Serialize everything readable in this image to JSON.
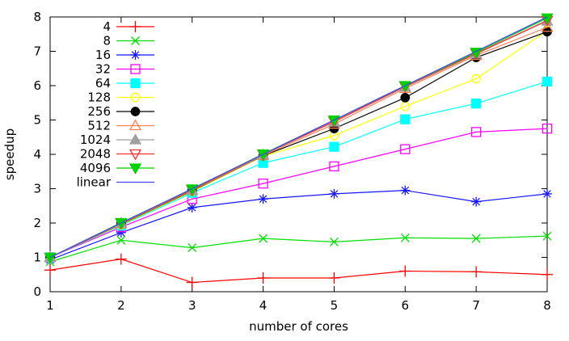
{
  "chart_data": {
    "type": "line",
    "title": "",
    "xlabel": "number of cores",
    "ylabel": "speedup",
    "x": [
      1,
      2,
      3,
      4,
      5,
      6,
      7,
      8
    ],
    "xlim": [
      1,
      8
    ],
    "ylim": [
      0,
      8
    ],
    "x_ticks": [
      1,
      2,
      3,
      4,
      5,
      6,
      7,
      8
    ],
    "y_ticks": [
      0,
      1,
      2,
      3,
      4,
      5,
      6,
      7,
      8
    ],
    "grid": false,
    "legend_position": "top-left-inside",
    "border_color": "#000000",
    "series": [
      {
        "name": "4",
        "color": "#ff0000",
        "marker": "plus",
        "filled": false,
        "values": [
          0.63,
          0.95,
          0.27,
          0.4,
          0.4,
          0.6,
          0.58,
          0.5
        ]
      },
      {
        "name": "8",
        "color": "#00e000",
        "marker": "cross",
        "filled": false,
        "values": [
          0.87,
          1.5,
          1.28,
          1.55,
          1.45,
          1.57,
          1.55,
          1.62
        ]
      },
      {
        "name": "16",
        "color": "#1515ff",
        "marker": "asterisk",
        "filled": false,
        "values": [
          0.93,
          1.72,
          2.45,
          2.7,
          2.85,
          2.95,
          2.62,
          2.85
        ]
      },
      {
        "name": "32",
        "color": "#ff00ff",
        "marker": "square",
        "filled": false,
        "values": [
          1.0,
          1.88,
          2.7,
          3.15,
          3.65,
          4.15,
          4.65,
          4.75
        ]
      },
      {
        "name": "64",
        "color": "#00ffff",
        "marker": "square",
        "filled": true,
        "values": [
          1.0,
          1.93,
          2.88,
          3.75,
          4.22,
          5.02,
          5.48,
          6.12
        ]
      },
      {
        "name": "128",
        "color": "#ffff00",
        "marker": "circle",
        "filled": false,
        "values": [
          1.0,
          1.95,
          2.92,
          3.95,
          4.55,
          5.4,
          6.2,
          7.6
        ]
      },
      {
        "name": "256",
        "color": "#000000",
        "marker": "circle",
        "filled": true,
        "values": [
          1.0,
          1.97,
          2.94,
          3.96,
          4.75,
          5.65,
          6.82,
          7.57
        ]
      },
      {
        "name": "512",
        "color": "#ff7f50",
        "marker": "triangle-up",
        "filled": false,
        "values": [
          1.0,
          1.98,
          2.95,
          3.97,
          4.88,
          5.92,
          6.88,
          7.7
        ]
      },
      {
        "name": "1024",
        "color": "#9f9f9f",
        "marker": "triangle-up",
        "filled": true,
        "values": [
          1.0,
          2.0,
          2.96,
          3.99,
          4.94,
          5.96,
          6.92,
          7.88
        ]
      },
      {
        "name": "2048",
        "color": "#ff3030",
        "marker": "triangle-down",
        "filled": false,
        "values": [
          1.0,
          2.0,
          2.97,
          4.0,
          4.96,
          5.98,
          6.94,
          7.9
        ]
      },
      {
        "name": "4096",
        "color": "#00d000",
        "marker": "triangle-down",
        "filled": true,
        "values": [
          1.0,
          2.01,
          2.99,
          4.01,
          5.0,
          6.0,
          6.97,
          7.97
        ]
      },
      {
        "name": "linear",
        "color": "#4444ff",
        "marker": "none",
        "filled": false,
        "values": [
          1,
          2,
          3,
          4,
          5,
          6,
          7,
          8
        ]
      }
    ]
  }
}
